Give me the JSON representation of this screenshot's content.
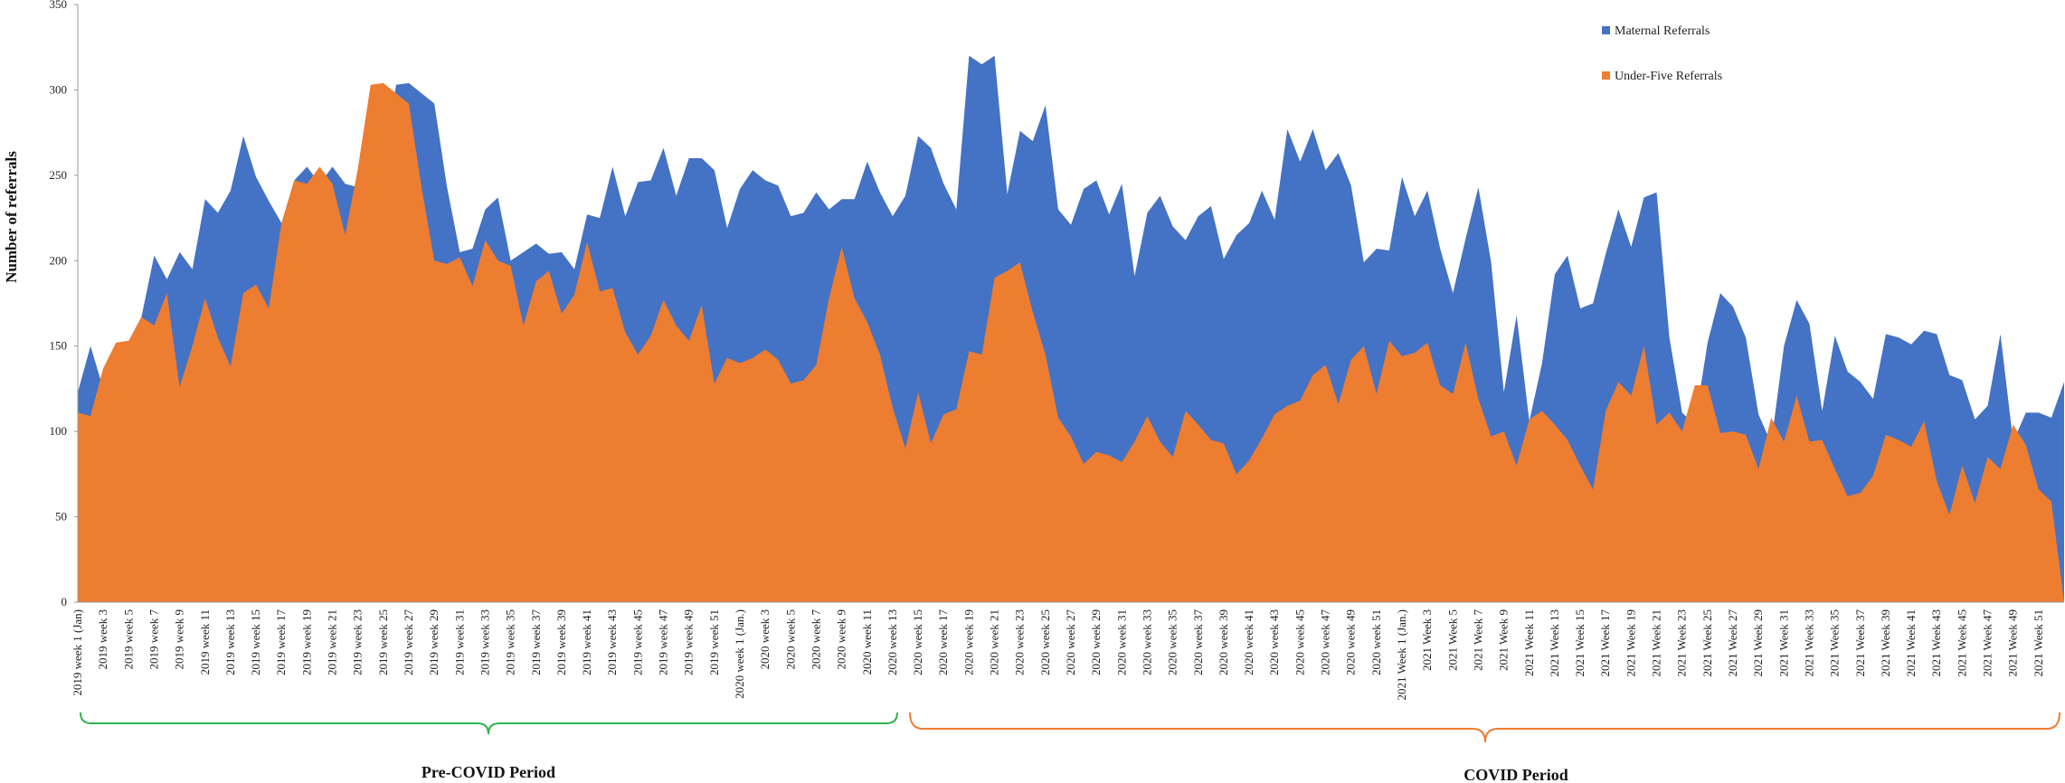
{
  "chart_data": {
    "type": "area",
    "title": "",
    "ylabel": "Number of referrals",
    "xlabel": "",
    "ylim": [
      0,
      350
    ],
    "yticks": [
      0,
      50,
      100,
      150,
      200,
      250,
      300,
      350
    ],
    "grid": false,
    "legend_position": "top-right",
    "x_labels": [
      "2019 week 1 (Jan)",
      "2019 week 3",
      "2019 week 5",
      "2019 week 7",
      "2019 week 9",
      "2019 week 11",
      "2019 week 13",
      "2019 week 15",
      "2019 week 17",
      "2019 week 19",
      "2019 week 21",
      "2019 week 23",
      "2019 week 25",
      "2019 week 27",
      "2019 week 29",
      "2019 week 31",
      "2019 week 33",
      "2019 week 35",
      "2019 week 37",
      "2019 week 39",
      "2019 week 41",
      "2019 week 43",
      "2019 week 45",
      "2019 week 47",
      "2019 week 49",
      "2019 week 51",
      "2020 week 1 (Jan.)",
      "2020 week 3",
      "2020 week 5",
      "2020 week 7",
      "2020 week 9",
      "2020 week 11",
      "2020 week 13",
      "2020 week 15",
      "2020 week 17",
      "2020 week 19",
      "2020 week 21",
      "2020 week 23",
      "2020 week 25",
      "2020 week 27",
      "2020 week 29",
      "2020 week 31",
      "2020 week 33",
      "2020 week 35",
      "2020 week 37",
      "2020 week 39",
      "2020 week 41",
      "2020 week 43",
      "2020 week 45",
      "2020 week 47",
      "2020 week 49",
      "2020 week 51",
      "2021 Week 1 (Jan.)",
      "2021 Week 3",
      "2021 Week 5",
      "2021 Week 7",
      "2021 Week 9",
      "2021 Week 11",
      "2021 Week 13",
      "2021 Week 15",
      "2021 Week 17",
      "2021 Week 19",
      "2021 Week 21",
      "2021 Week 23",
      "2021 Week 25",
      "2021 Week 27",
      "2021 Week 29",
      "2021 Week 31",
      "2021 Week 33",
      "2021 Week 35",
      "2021 Week 37",
      "2021 Week 39",
      "2021 Week 41",
      "2021 Week 43",
      "2021 Week 45",
      "2021 Week 47",
      "2021 Week 49",
      "2021 Week 51"
    ],
    "series": [
      {
        "name": "Maternal Referrals",
        "color": "#4472c4",
        "values": [
          123,
          150,
          125,
          152,
          153,
          167,
          203,
          189,
          205,
          195,
          236,
          228,
          241,
          273,
          249,
          235,
          222,
          247,
          255,
          245,
          255,
          245,
          243,
          214,
          255,
          303,
          304,
          298,
          292,
          243,
          205,
          207,
          230,
          237,
          200,
          205,
          210,
          204,
          205,
          195,
          227,
          225,
          255,
          226,
          246,
          247,
          266,
          238,
          260,
          260,
          253,
          219,
          242,
          253,
          247,
          244,
          226,
          228,
          240,
          230,
          236,
          236,
          258,
          240,
          226,
          238,
          273,
          266,
          245,
          230,
          320,
          315,
          320,
          239,
          276,
          270,
          291,
          230,
          221,
          242,
          247,
          227,
          245,
          191,
          228,
          238,
          220,
          212,
          226,
          232,
          201,
          215,
          222,
          241,
          224,
          277,
          258,
          277,
          253,
          263,
          244,
          199,
          207,
          206,
          249,
          226,
          241,
          207,
          181,
          213,
          243,
          199,
          123,
          168,
          106,
          140,
          192,
          203,
          172,
          175,
          204,
          230,
          208,
          237,
          240,
          155,
          111,
          104,
          152,
          181,
          173,
          155,
          110,
          93,
          150,
          177,
          163,
          112,
          156,
          135,
          129,
          119,
          157,
          155,
          151,
          159,
          157,
          133,
          130,
          107,
          115,
          157,
          94,
          111,
          111,
          108,
          129
        ]
      },
      {
        "name": "Under-Five Referrals",
        "color": "#ed7d31",
        "values": [
          111,
          109,
          137,
          152,
          153,
          167,
          162,
          181,
          126,
          150,
          178,
          155,
          138,
          181,
          186,
          172,
          222,
          247,
          245,
          255,
          245,
          215,
          254,
          303,
          304,
          298,
          292,
          243,
          200,
          198,
          202,
          185,
          212,
          200,
          197,
          162,
          188,
          194,
          169,
          180,
          211,
          182,
          184,
          158,
          145,
          156,
          177,
          162,
          153,
          174,
          128,
          143,
          140,
          143,
          148,
          142,
          128,
          130,
          139,
          178,
          208,
          178,
          164,
          145,
          114,
          90,
          123,
          93,
          110,
          113,
          147,
          145,
          190,
          194,
          199,
          170,
          145,
          108,
          97,
          81,
          88,
          86,
          82,
          94,
          109,
          94,
          85,
          112,
          104,
          95,
          93,
          75,
          83,
          96,
          110,
          115,
          118,
          133,
          139,
          116,
          142,
          150,
          122,
          153,
          144,
          146,
          152,
          127,
          122,
          152,
          119,
          97,
          100,
          80,
          107,
          112,
          104,
          95,
          80,
          66,
          112,
          129,
          121,
          150,
          104,
          111,
          100,
          127,
          127,
          99,
          100,
          98,
          78,
          108,
          94,
          121,
          94,
          95,
          78,
          62,
          64,
          74,
          98,
          95,
          91,
          106,
          71,
          51,
          80,
          58,
          85,
          78,
          104,
          92,
          66,
          59
        ]
      }
    ]
  },
  "legend": [
    {
      "label": "Maternal Referrals",
      "color": "#4472c4"
    },
    {
      "label": "Under-Five Referrals",
      "color": "#ed7d31"
    }
  ],
  "periods": [
    {
      "label": "Pre-COVID Period",
      "color": "#2fb34a"
    },
    {
      "label": "COVID Period",
      "color": "#ed7d31"
    }
  ]
}
